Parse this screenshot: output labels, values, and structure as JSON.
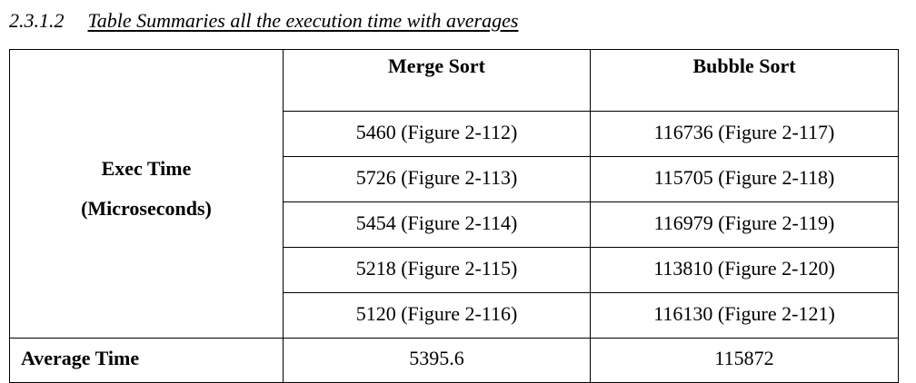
{
  "section": {
    "number": "2.3.1.2",
    "title": "Table Summaries all the execution time with averages"
  },
  "table": {
    "headers": [
      "",
      "Merge Sort",
      "Bubble Sort"
    ],
    "row_label_line1": "Exec Time",
    "row_label_line2": "(Microseconds)",
    "rows": [
      {
        "merge": "5460 (Figure 2-112)",
        "bubble": "116736 (Figure 2-117)"
      },
      {
        "merge": "5726 (Figure 2-113)",
        "bubble": "115705 (Figure 2-118)"
      },
      {
        "merge": "5454 (Figure 2-114)",
        "bubble": "116979 (Figure 2-119)"
      },
      {
        "merge": "5218 (Figure 2-115)",
        "bubble": "113810 (Figure 2-120)"
      },
      {
        "merge": "5120 (Figure 2-116)",
        "bubble": "116130 (Figure 2-121)"
      }
    ],
    "average": {
      "label": "Average Time",
      "merge": "5395.6",
      "bubble": "115872"
    }
  }
}
